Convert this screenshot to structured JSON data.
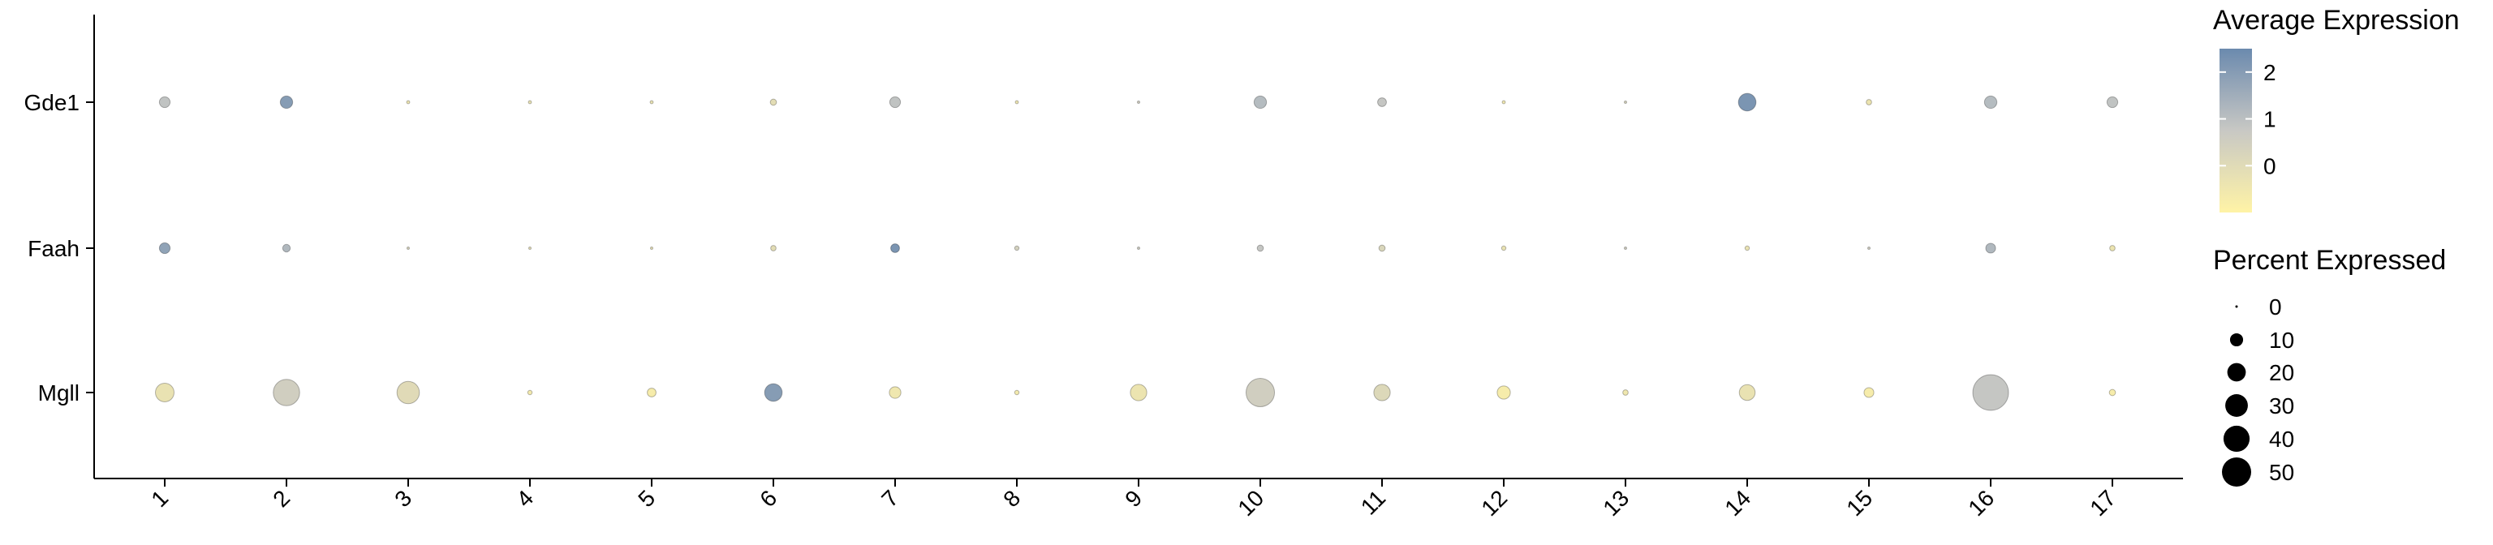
{
  "chart_data": {
    "type": "dotplot",
    "title": "",
    "xlabel": "",
    "ylabel": "",
    "categories": [
      "1",
      "2",
      "3",
      "4",
      "5",
      "6",
      "7",
      "8",
      "9",
      "10",
      "11",
      "12",
      "13",
      "14",
      "15",
      "16",
      "17"
    ],
    "genes": [
      "Gde1",
      "Faah",
      "Mgll"
    ],
    "avg_expression": {
      "Gde1": [
        0.9,
        2.0,
        -0.4,
        -0.3,
        -0.3,
        -0.1,
        0.9,
        -0.4,
        0.5,
        1.1,
        0.8,
        -0.5,
        0.3,
        2.2,
        -0.4,
        1.1,
        0.9
      ],
      "Faah": [
        1.8,
        1.2,
        0.3,
        -0.2,
        -0.2,
        -0.1,
        2.2,
        0.4,
        0.6,
        0.8,
        0.2,
        -0.3,
        0.5,
        -0.3,
        0.5,
        1.2,
        -0.4
      ],
      "Mgll": [
        -0.3,
        0.5,
        0.0,
        -0.6,
        -0.7,
        2.0,
        -0.5,
        -0.6,
        -0.4,
        0.5,
        0.1,
        -0.7,
        -0.5,
        -0.3,
        -0.7,
        0.8,
        -0.7
      ]
    },
    "pct_expressed": {
      "Gde1": [
        6,
        8,
        0.5,
        0.5,
        0.5,
        2,
        6,
        0.5,
        0.3,
        8,
        4,
        0.5,
        0.3,
        16,
        1.5,
        8,
        6
      ],
      "Faah": [
        6,
        3,
        0.3,
        0.3,
        0.3,
        1.5,
        4,
        1,
        0.3,
        2,
        2,
        1,
        0.3,
        1,
        0.3,
        5,
        1.5
      ],
      "Mgll": [
        18,
        36,
        26,
        1,
        4,
        16,
        7,
        1,
        14,
        42,
        14,
        9,
        1.5,
        13,
        5,
        66,
        2
      ]
    },
    "color_legend": {
      "title": "Average Expression",
      "ticks": [
        2,
        1,
        0
      ],
      "low_color": "#fff3a6",
      "mid_color": "#c8c8c4",
      "high_color": "#6b8aae",
      "range": [
        -1,
        2.5
      ]
    },
    "size_legend": {
      "title": "Percent Expressed",
      "values": [
        0,
        10,
        20,
        30,
        40,
        50
      ]
    }
  }
}
